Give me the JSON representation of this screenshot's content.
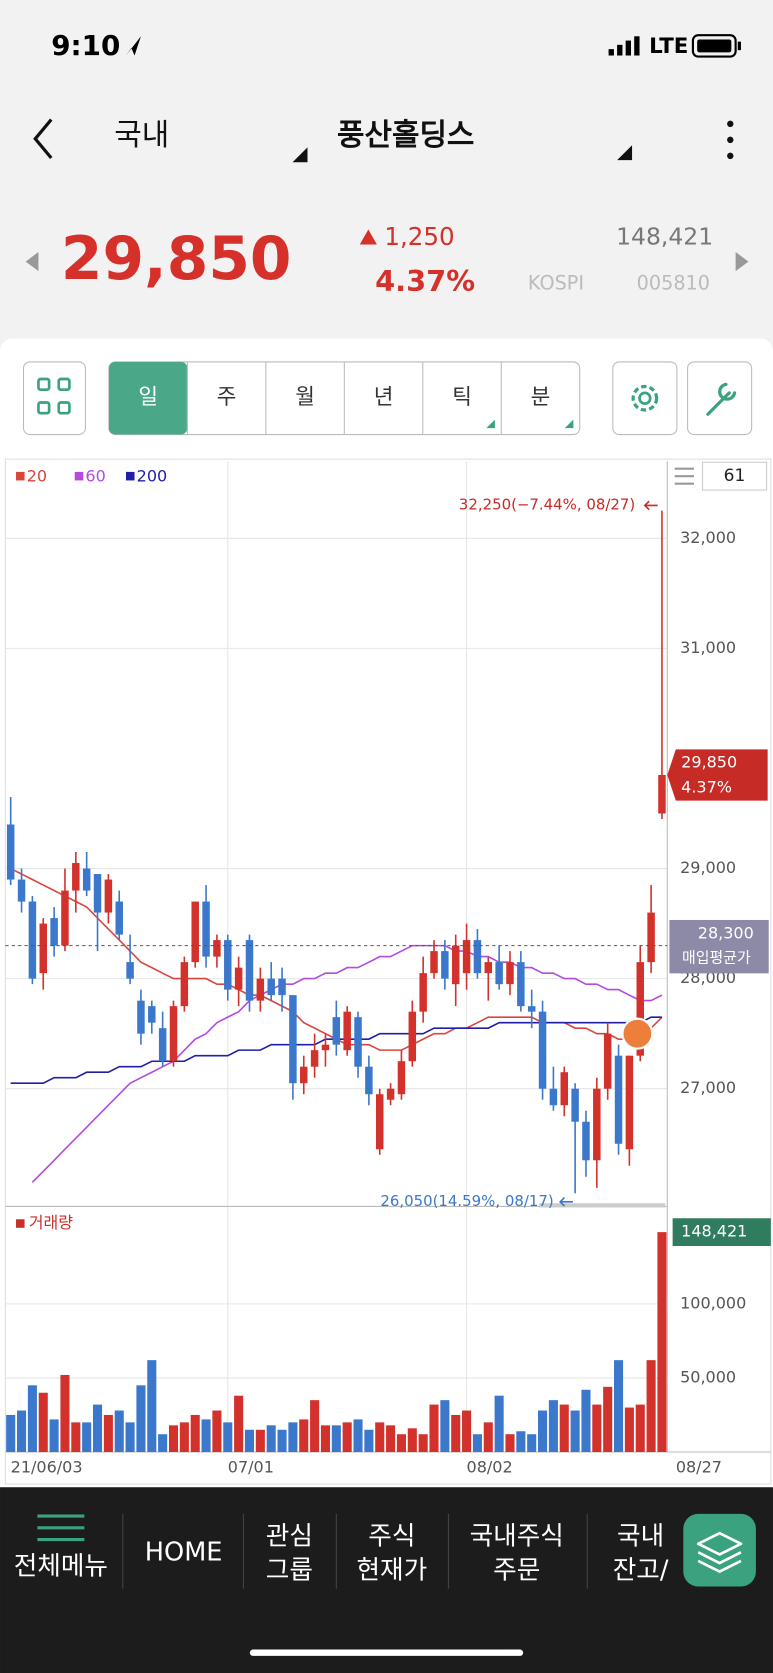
{
  "status_bar": {
    "time": "9:10",
    "network": "LTE"
  },
  "header": {
    "market": "국내",
    "name": "풍산홀딩스"
  },
  "quote": {
    "price": "29,850",
    "change": "1,250",
    "change_pct": "4.37%",
    "volume": "148,421",
    "exchange": "KOSPI",
    "code": "005810"
  },
  "periods": [
    "일",
    "주",
    "월",
    "년",
    "틱",
    "분"
  ],
  "period_count": 61,
  "chart_data": [
    {
      "type": "candlestick",
      "categories": [
        "21/06/03",
        null,
        null,
        null,
        null,
        null,
        null,
        null,
        null,
        null,
        null,
        null,
        null,
        null,
        null,
        null,
        null,
        null,
        null,
        null,
        "07/01",
        null,
        null,
        null,
        null,
        null,
        null,
        null,
        null,
        null,
        null,
        null,
        null,
        null,
        null,
        null,
        null,
        null,
        null,
        null,
        null,
        null,
        "08/02",
        null,
        null,
        null,
        null,
        null,
        null,
        null,
        null,
        null,
        null,
        null,
        null,
        null,
        null,
        null,
        null,
        null,
        "08/27"
      ],
      "open": [
        29400,
        28900,
        28700,
        28050,
        28550,
        28300,
        28800,
        29000,
        28950,
        28600,
        28700,
        28150,
        27800,
        27750,
        27550,
        27250,
        27750,
        28150,
        28700,
        28200,
        28350,
        27900,
        28350,
        27800,
        28000,
        28000,
        27850,
        27050,
        27200,
        27350,
        27650,
        27350,
        27650,
        27200,
        26450,
        26900,
        26950,
        27250,
        27700,
        28050,
        28250,
        27950,
        28050,
        28350,
        28050,
        28150,
        27950,
        28150,
        27750,
        27700,
        27000,
        26850,
        27000,
        26700,
        26350,
        27000,
        27300,
        26450,
        27300,
        28150,
        29500
      ],
      "high": [
        29650,
        29000,
        28750,
        28550,
        28650,
        29000,
        29150,
        29150,
        28950,
        28950,
        28800,
        28400,
        27900,
        27800,
        27700,
        27800,
        28200,
        28700,
        28850,
        28400,
        28400,
        28200,
        28400,
        28100,
        28150,
        28100,
        27850,
        27300,
        27500,
        27500,
        27800,
        27750,
        27700,
        27300,
        27000,
        27050,
        27350,
        27800,
        28200,
        28350,
        28350,
        28400,
        28500,
        28450,
        28200,
        28300,
        28250,
        28250,
        27900,
        27800,
        27200,
        27200,
        27050,
        26800,
        27100,
        27600,
        27400,
        27300,
        28300,
        28850,
        32250
      ],
      "low": [
        28850,
        28600,
        27950,
        27900,
        28200,
        28250,
        28600,
        28750,
        28250,
        28500,
        28350,
        27950,
        27400,
        27500,
        27200,
        27200,
        27700,
        28100,
        28100,
        28100,
        27800,
        27750,
        27700,
        27700,
        27800,
        27700,
        26900,
        26950,
        27100,
        27200,
        27300,
        27300,
        27100,
        26850,
        26400,
        26850,
        26900,
        27200,
        27600,
        28000,
        27900,
        27750,
        27900,
        28000,
        27800,
        27900,
        27850,
        27700,
        27550,
        26900,
        26800,
        26750,
        26050,
        26200,
        26100,
        26900,
        26400,
        26300,
        27250,
        28050,
        29450
      ],
      "close": [
        28900,
        28700,
        28000,
        28500,
        28300,
        28800,
        29050,
        28800,
        28600,
        28900,
        28400,
        28000,
        27500,
        27600,
        27250,
        27750,
        28150,
        28700,
        28200,
        28350,
        27900,
        28100,
        27800,
        28000,
        27850,
        27850,
        27050,
        27200,
        27350,
        27400,
        27400,
        27700,
        27200,
        26950,
        26950,
        27000,
        27250,
        27700,
        28050,
        28250,
        28000,
        28300,
        28350,
        28050,
        28150,
        27950,
        28150,
        27750,
        27700,
        27000,
        26850,
        27150,
        26700,
        26350,
        27000,
        27500,
        26500,
        27300,
        28150,
        28600,
        29850
      ],
      "up_color": "#d3312b",
      "down_color": "#3b78cc",
      "series": [
        {
          "name": "20",
          "color": "#d9463c",
          "values": [
            29000,
            28950,
            28900,
            28850,
            28800,
            28750,
            28700,
            28650,
            28550,
            28450,
            28350,
            28250,
            28150,
            28100,
            28050,
            28000,
            28000,
            28000,
            28000,
            27950,
            27950,
            27900,
            27850,
            27850,
            27800,
            27750,
            27700,
            27600,
            27550,
            27500,
            27450,
            27400,
            27400,
            27400,
            27350,
            27350,
            27350,
            27400,
            27450,
            27500,
            27500,
            27550,
            27550,
            27600,
            27650,
            27650,
            27650,
            27650,
            27650,
            27600,
            27600,
            27600,
            27550,
            27550,
            27500,
            27500,
            27450,
            27450,
            27500,
            27550,
            27650
          ]
        },
        {
          "name": "60",
          "color": "#b44be0",
          "values": [
            null,
            null,
            26150,
            26250,
            26350,
            26450,
            26550,
            26650,
            26750,
            26850,
            26950,
            27050,
            27100,
            27150,
            27200,
            27250,
            27350,
            27450,
            27500,
            27600,
            27650,
            27700,
            27800,
            27850,
            27900,
            27950,
            27950,
            28000,
            28000,
            28050,
            28050,
            28100,
            28100,
            28150,
            28200,
            28200,
            28250,
            28300,
            28300,
            28300,
            28300,
            28250,
            28250,
            28200,
            28200,
            28150,
            28150,
            28100,
            28100,
            28050,
            28050,
            28000,
            28000,
            27950,
            27950,
            27900,
            27900,
            27850,
            27800,
            27800,
            27850
          ]
        },
        {
          "name": "200",
          "color": "#1f1fa8",
          "values": [
            27050,
            27050,
            27050,
            27050,
            27100,
            27100,
            27100,
            27150,
            27150,
            27150,
            27200,
            27200,
            27200,
            27250,
            27250,
            27250,
            27250,
            27300,
            27300,
            27300,
            27300,
            27350,
            27350,
            27350,
            27400,
            27400,
            27400,
            27400,
            27400,
            27450,
            27450,
            27450,
            27450,
            27450,
            27500,
            27500,
            27500,
            27500,
            27500,
            27550,
            27550,
            27550,
            27550,
            27550,
            27550,
            27600,
            27600,
            27600,
            27600,
            27600,
            27600,
            27600,
            27600,
            27600,
            27600,
            27600,
            27600,
            27600,
            27600,
            27650,
            27650
          ]
        }
      ],
      "ylim": [
        25950,
        32700
      ],
      "yticks": [
        {
          "value": 27000,
          "label": "27,000"
        },
        {
          "value": 28000,
          "label": "28,000"
        },
        {
          "value": 29000,
          "label": "29,000"
        },
        {
          "value": 31000,
          "label": "31,000"
        },
        {
          "value": 32000,
          "label": "32,000"
        }
      ],
      "grid": true,
      "high_label": "32,250(−7.44%, 08/27)",
      "low_label": "26,050(14.59%, 08/17)",
      "last_label": {
        "value": 29850,
        "label": "29,850",
        "change": "4.37%"
      },
      "avg_price": {
        "value": 28300,
        "label": "28,300",
        "name": "매입평균가"
      }
    },
    {
      "type": "bar",
      "name": "거래량",
      "color": "#c9302c",
      "values": [
        25000,
        28000,
        45000,
        40000,
        22000,
        52000,
        20000,
        20000,
        32000,
        25000,
        28000,
        20000,
        45000,
        62000,
        12000,
        18000,
        20000,
        25000,
        22000,
        28000,
        20000,
        38000,
        15000,
        15000,
        18000,
        15000,
        20000,
        22000,
        35000,
        18000,
        18000,
        20000,
        22000,
        15000,
        20000,
        18000,
        12000,
        16000,
        12000,
        32000,
        35000,
        25000,
        28000,
        12000,
        20000,
        38000,
        12000,
        14000,
        12000,
        28000,
        35000,
        32000,
        28000,
        42000,
        32000,
        44000,
        62000,
        30000,
        32000,
        62000,
        148421
      ],
      "ylim": [
        0,
        160000
      ],
      "yticks": [
        {
          "value": 50000,
          "label": "50,000"
        },
        {
          "value": 100000,
          "label": "100,000"
        }
      ],
      "grid": true,
      "last_label": "148,421"
    }
  ],
  "nav": [
    [
      "전체메뉴"
    ],
    [
      "HOME"
    ],
    [
      "관심",
      "그룹"
    ],
    [
      "주식",
      "현재가"
    ],
    [
      "국내주식",
      "주문"
    ],
    [
      "국내",
      "잔고/"
    ]
  ]
}
